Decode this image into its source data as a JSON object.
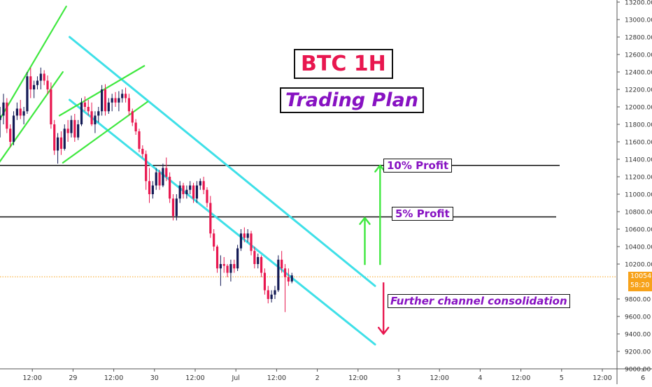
{
  "chart_data": {
    "type": "candlestick",
    "title": "BTC 1H",
    "subtitle": "Trading Plan",
    "colors": {
      "up": "#131a55",
      "down": "#e8174f",
      "channel": "#3fe0e8",
      "trend": "#3fe83f",
      "target_arrow": "#3fe83f",
      "down_arrow": "#e8174f",
      "label_text": "#8712c2",
      "title_text": "#e8174f",
      "current_price": "#f7a21a"
    },
    "y_axis": {
      "min": 9000,
      "max": 13200,
      "ticks": [
        "13200.00",
        "13000.00",
        "12800.00",
        "12600.00",
        "12400.00",
        "12200.00",
        "12000.00",
        "11800.00",
        "11600.00",
        "11400.00",
        "11200.00",
        "11000.00",
        "10800.00",
        "10600.00",
        "10400.00",
        "10200.00",
        "9800.00",
        "9600.00",
        "9400.00",
        "9200.00",
        "9000.00"
      ],
      "tick_values": [
        13200,
        13000,
        12800,
        12600,
        12400,
        12200,
        12000,
        11800,
        11600,
        11400,
        11200,
        11000,
        10800,
        10600,
        10400,
        10200,
        9800,
        9600,
        9400,
        9200,
        9000
      ]
    },
    "x_axis": {
      "hours_per_candle": 1,
      "ticks": [
        {
          "label": "12:00",
          "hour": 12
        },
        {
          "label": "29",
          "hour": 24
        },
        {
          "label": "12:00",
          "hour": 36
        },
        {
          "label": "30",
          "hour": 48
        },
        {
          "label": "12:00",
          "hour": 60
        },
        {
          "label": "Jul",
          "hour": 72
        },
        {
          "label": "12:00",
          "hour": 84
        },
        {
          "label": "2",
          "hour": 96
        },
        {
          "label": "12:00",
          "hour": 108
        },
        {
          "label": "3",
          "hour": 120
        },
        {
          "label": "12:00",
          "hour": 132
        },
        {
          "label": "4",
          "hour": 144
        },
        {
          "label": "12:00",
          "hour": 156
        },
        {
          "label": "5",
          "hour": 168
        },
        {
          "label": "12:00",
          "hour": 180
        },
        {
          "label": "6",
          "hour": 192
        }
      ]
    },
    "current_price": {
      "value": 10054.02,
      "label": "10054.02",
      "countdown": "58:20"
    },
    "levels": [
      {
        "name": "10% Profit",
        "value": 11330
      },
      {
        "name": "5% Profit",
        "value": 10740
      }
    ],
    "channel": {
      "upper": [
        {
          "hour": 23,
          "price": 12800
        },
        {
          "hour": 113,
          "price": 9950
        }
      ],
      "lower": [
        {
          "hour": 23,
          "price": 12080
        },
        {
          "hour": 113,
          "price": 9280
        }
      ]
    },
    "trend_lines": [
      {
        "from": {
          "hour": 0,
          "price": 11700
        },
        "to": {
          "hour": 22,
          "price": 13150
        }
      },
      {
        "from": {
          "hour": 0,
          "price": 11240
        },
        "to": {
          "hour": 21,
          "price": 12400
        }
      },
      {
        "from": {
          "hour": 20,
          "price": 11900
        },
        "to": {
          "hour": 45,
          "price": 12470
        }
      },
      {
        "from": {
          "hour": 21,
          "price": 11360
        },
        "to": {
          "hour": 46,
          "price": 12060
        }
      }
    ],
    "arrows": [
      {
        "from": {
          "hour": 110,
          "price": 10190
        },
        "to": {
          "hour": 110,
          "price": 10730
        },
        "color": "target_arrow"
      },
      {
        "from": {
          "hour": 114.5,
          "price": 10190
        },
        "to": {
          "hour": 114.5,
          "price": 11330
        },
        "color": "target_arrow"
      },
      {
        "from": {
          "hour": 115.5,
          "price": 9990
        },
        "to": {
          "hour": 115.5,
          "price": 9400
        },
        "color": "down_arrow"
      }
    ],
    "annotations": [
      "10% Profit",
      "5% Profit",
      "Further channel consolidation"
    ],
    "candles": [
      {
        "o": 11850,
        "h": 12000,
        "l": 11650,
        "c": 11900
      },
      {
        "o": 11900,
        "h": 12150,
        "l": 11800,
        "c": 12050
      },
      {
        "o": 12050,
        "h": 12100,
        "l": 11700,
        "c": 11750
      },
      {
        "o": 11750,
        "h": 11800,
        "l": 11540,
        "c": 11600
      },
      {
        "o": 11600,
        "h": 11950,
        "l": 11560,
        "c": 11900
      },
      {
        "o": 11900,
        "h": 12050,
        "l": 11850,
        "c": 11980
      },
      {
        "o": 11980,
        "h": 12080,
        "l": 11860,
        "c": 11900
      },
      {
        "o": 11900,
        "h": 12000,
        "l": 11800,
        "c": 11950
      },
      {
        "o": 11950,
        "h": 12400,
        "l": 11920,
        "c": 12350
      },
      {
        "o": 12350,
        "h": 12450,
        "l": 12100,
        "c": 12200
      },
      {
        "o": 12200,
        "h": 12300,
        "l": 12100,
        "c": 12250
      },
      {
        "o": 12250,
        "h": 12350,
        "l": 12200,
        "c": 12300
      },
      {
        "o": 12300,
        "h": 12450,
        "l": 12200,
        "c": 12380
      },
      {
        "o": 12380,
        "h": 12420,
        "l": 12250,
        "c": 12300
      },
      {
        "o": 12300,
        "h": 12360,
        "l": 12150,
        "c": 12200
      },
      {
        "o": 12200,
        "h": 12280,
        "l": 11750,
        "c": 11800
      },
      {
        "o": 11800,
        "h": 11850,
        "l": 11450,
        "c": 11500
      },
      {
        "o": 11500,
        "h": 11700,
        "l": 11350,
        "c": 11650
      },
      {
        "o": 11650,
        "h": 11720,
        "l": 11450,
        "c": 11520
      },
      {
        "o": 11520,
        "h": 11800,
        "l": 11500,
        "c": 11750
      },
      {
        "o": 11750,
        "h": 11850,
        "l": 11600,
        "c": 11700
      },
      {
        "o": 11700,
        "h": 11900,
        "l": 11650,
        "c": 11850
      },
      {
        "o": 11850,
        "h": 11920,
        "l": 11600,
        "c": 11650
      },
      {
        "o": 11650,
        "h": 11850,
        "l": 11620,
        "c": 11800
      },
      {
        "o": 11800,
        "h": 12100,
        "l": 11780,
        "c": 12050
      },
      {
        "o": 12050,
        "h": 12120,
        "l": 11950,
        "c": 12000
      },
      {
        "o": 12000,
        "h": 12080,
        "l": 11900,
        "c": 11950
      },
      {
        "o": 11950,
        "h": 12050,
        "l": 11780,
        "c": 11800
      },
      {
        "o": 11800,
        "h": 11950,
        "l": 11700,
        "c": 11900
      },
      {
        "o": 11900,
        "h": 12000,
        "l": 11820,
        "c": 11950
      },
      {
        "o": 11950,
        "h": 12250,
        "l": 11900,
        "c": 12200
      },
      {
        "o": 12200,
        "h": 12260,
        "l": 11900,
        "c": 11950
      },
      {
        "o": 11950,
        "h": 12100,
        "l": 11920,
        "c": 12050
      },
      {
        "o": 12050,
        "h": 12150,
        "l": 11950,
        "c": 12100
      },
      {
        "o": 12100,
        "h": 12170,
        "l": 12000,
        "c": 12050
      },
      {
        "o": 12050,
        "h": 12180,
        "l": 11950,
        "c": 12100
      },
      {
        "o": 12100,
        "h": 12200,
        "l": 12050,
        "c": 12150
      },
      {
        "o": 12150,
        "h": 12220,
        "l": 12050,
        "c": 12100
      },
      {
        "o": 12100,
        "h": 12150,
        "l": 11900,
        "c": 11950
      },
      {
        "o": 11950,
        "h": 11980,
        "l": 11780,
        "c": 11820
      },
      {
        "o": 11820,
        "h": 11860,
        "l": 11680,
        "c": 11720
      },
      {
        "o": 11720,
        "h": 11750,
        "l": 11480,
        "c": 11520
      },
      {
        "o": 11520,
        "h": 11560,
        "l": 11420,
        "c": 11460
      },
      {
        "o": 11460,
        "h": 11500,
        "l": 11050,
        "c": 11150
      },
      {
        "o": 11150,
        "h": 11300,
        "l": 10900,
        "c": 11000
      },
      {
        "o": 11000,
        "h": 11150,
        "l": 10950,
        "c": 11100
      },
      {
        "o": 11100,
        "h": 11300,
        "l": 11050,
        "c": 11250
      },
      {
        "o": 11250,
        "h": 11280,
        "l": 11050,
        "c": 11100
      },
      {
        "o": 11100,
        "h": 11350,
        "l": 11080,
        "c": 11300
      },
      {
        "o": 11300,
        "h": 11420,
        "l": 11150,
        "c": 11200
      },
      {
        "o": 11200,
        "h": 11250,
        "l": 10900,
        "c": 10950
      },
      {
        "o": 10950,
        "h": 11000,
        "l": 10700,
        "c": 10750
      },
      {
        "o": 10750,
        "h": 11000,
        "l": 10700,
        "c": 10950
      },
      {
        "o": 10950,
        "h": 11150,
        "l": 10900,
        "c": 11100
      },
      {
        "o": 11100,
        "h": 11130,
        "l": 10950,
        "c": 11000
      },
      {
        "o": 11000,
        "h": 11100,
        "l": 10950,
        "c": 11050
      },
      {
        "o": 11050,
        "h": 11150,
        "l": 11000,
        "c": 11100
      },
      {
        "o": 11100,
        "h": 11130,
        "l": 10900,
        "c": 10950
      },
      {
        "o": 10950,
        "h": 11150,
        "l": 10900,
        "c": 11100
      },
      {
        "o": 11100,
        "h": 11180,
        "l": 11050,
        "c": 11150
      },
      {
        "o": 11150,
        "h": 11200,
        "l": 11000,
        "c": 11050
      },
      {
        "o": 11050,
        "h": 11080,
        "l": 10850,
        "c": 10900
      },
      {
        "o": 10900,
        "h": 10980,
        "l": 10500,
        "c": 10550
      },
      {
        "o": 10550,
        "h": 10600,
        "l": 10350,
        "c": 10400
      },
      {
        "o": 10400,
        "h": 10420,
        "l": 10100,
        "c": 10150
      },
      {
        "o": 10150,
        "h": 10300,
        "l": 9950,
        "c": 10200
      },
      {
        "o": 10200,
        "h": 10280,
        "l": 10100,
        "c": 10180
      },
      {
        "o": 10180,
        "h": 10200,
        "l": 10050,
        "c": 10100
      },
      {
        "o": 10100,
        "h": 10250,
        "l": 10000,
        "c": 10200
      },
      {
        "o": 10200,
        "h": 10250,
        "l": 10100,
        "c": 10150
      },
      {
        "o": 10150,
        "h": 10420,
        "l": 10120,
        "c": 10380
      },
      {
        "o": 10380,
        "h": 10600,
        "l": 10350,
        "c": 10550
      },
      {
        "o": 10550,
        "h": 10620,
        "l": 10450,
        "c": 10500
      },
      {
        "o": 10500,
        "h": 10600,
        "l": 10450,
        "c": 10550
      },
      {
        "o": 10550,
        "h": 10580,
        "l": 10300,
        "c": 10350
      },
      {
        "o": 10350,
        "h": 10400,
        "l": 10150,
        "c": 10200
      },
      {
        "o": 10200,
        "h": 10320,
        "l": 10150,
        "c": 10280
      },
      {
        "o": 10280,
        "h": 10300,
        "l": 10050,
        "c": 10100
      },
      {
        "o": 10100,
        "h": 10150,
        "l": 9850,
        "c": 9900
      },
      {
        "o": 9900,
        "h": 9950,
        "l": 9750,
        "c": 9800
      },
      {
        "o": 9800,
        "h": 9900,
        "l": 9760,
        "c": 9850
      },
      {
        "o": 9850,
        "h": 9950,
        "l": 9800,
        "c": 9900
      },
      {
        "o": 9900,
        "h": 10300,
        "l": 9880,
        "c": 10250
      },
      {
        "o": 10250,
        "h": 10350,
        "l": 10100,
        "c": 10150
      },
      {
        "o": 10150,
        "h": 10200,
        "l": 9650,
        "c": 10050
      },
      {
        "o": 10050,
        "h": 10150,
        "l": 9950,
        "c": 10000
      },
      {
        "o": 10000,
        "h": 10100,
        "l": 9980,
        "c": 10070
      }
    ]
  }
}
